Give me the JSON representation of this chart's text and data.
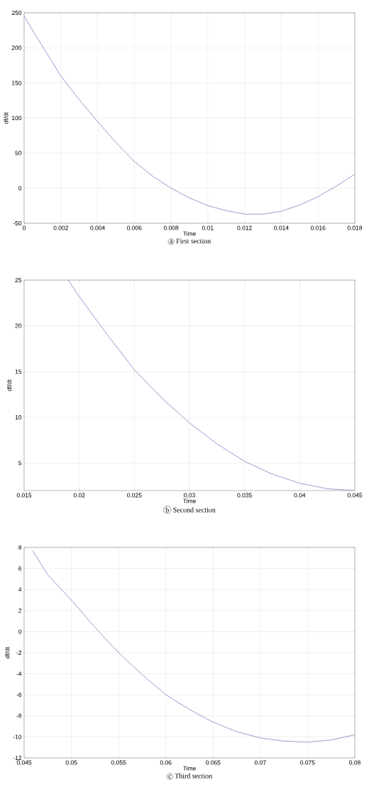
{
  "chart_data": [
    {
      "type": "line",
      "title": "First section",
      "annotations": [
        "a"
      ],
      "xlabel": "Time",
      "ylabel": "df/dt",
      "grid": true,
      "marker": "none",
      "xlim": [
        0,
        0.018
      ],
      "ylim": [
        -50,
        250
      ],
      "xticks": [
        0,
        0.002,
        0.004,
        0.006,
        0.008,
        0.01,
        0.012,
        0.014,
        0.016,
        0.018
      ],
      "yticks": [
        -50,
        0,
        50,
        100,
        150,
        200,
        250
      ],
      "x": [
        0,
        0.001,
        0.002,
        0.003,
        0.004,
        0.005,
        0.006,
        0.007,
        0.008,
        0.009,
        0.01,
        0.011,
        0.012,
        0.013,
        0.014,
        0.015,
        0.016,
        0.017,
        0.018
      ],
      "series": [
        {
          "color": "#7f7fc4",
          "values": [
            245,
            202,
            160,
            126,
            95,
            65,
            38,
            17,
            0,
            -14,
            -25,
            -32,
            -37,
            -37,
            -33,
            -24,
            -12,
            3,
            20
          ]
        }
      ]
    },
    {
      "type": "line",
      "title": "Second section",
      "annotations": [
        "b"
      ],
      "xlabel": "Time",
      "ylabel": "df/dt",
      "grid": true,
      "marker": "none",
      "xlim": [
        0.015,
        0.045
      ],
      "ylim": [
        2,
        25
      ],
      "xticks": [
        0.015,
        0.02,
        0.025,
        0.03,
        0.035,
        0.04,
        0.045
      ],
      "yticks": [
        5,
        10,
        15,
        20,
        25
      ],
      "x": [
        0.019,
        0.02,
        0.0225,
        0.025,
        0.0275,
        0.03,
        0.0325,
        0.035,
        0.0375,
        0.04,
        0.0425,
        0.045
      ],
      "series": [
        {
          "color": "#7f7fc4",
          "values": [
            25,
            23.2,
            19.1,
            15.2,
            12.1,
            9.4,
            7.1,
            5.2,
            3.8,
            2.8,
            2.2,
            2
          ]
        }
      ]
    },
    {
      "type": "line",
      "title": "Third section",
      "annotations": [
        "c"
      ],
      "xlabel": "Time",
      "ylabel": "df/dt",
      "grid": true,
      "marker": "none",
      "xlim": [
        0.045,
        0.08
      ],
      "ylim": [
        -12,
        8
      ],
      "xticks": [
        0.045,
        0.05,
        0.055,
        0.06,
        0.065,
        0.07,
        0.075,
        0.08
      ],
      "yticks": [
        -12,
        -10,
        -8,
        -6,
        -4,
        -2,
        0,
        2,
        4,
        6,
        8
      ],
      "x": [
        0.0459,
        0.0475,
        0.05,
        0.0525,
        0.055,
        0.0575,
        0.06,
        0.0625,
        0.065,
        0.0675,
        0.07,
        0.0725,
        0.075,
        0.0775,
        0.08
      ],
      "series": [
        {
          "color": "#7f7fc4",
          "values": [
            7.7,
            5.4,
            3,
            0.4,
            -2,
            -4.1,
            -6,
            -7.4,
            -8.6,
            -9.5,
            -10.1,
            -10.4,
            -10.5,
            -10.3,
            -9.8
          ]
        }
      ]
    }
  ]
}
